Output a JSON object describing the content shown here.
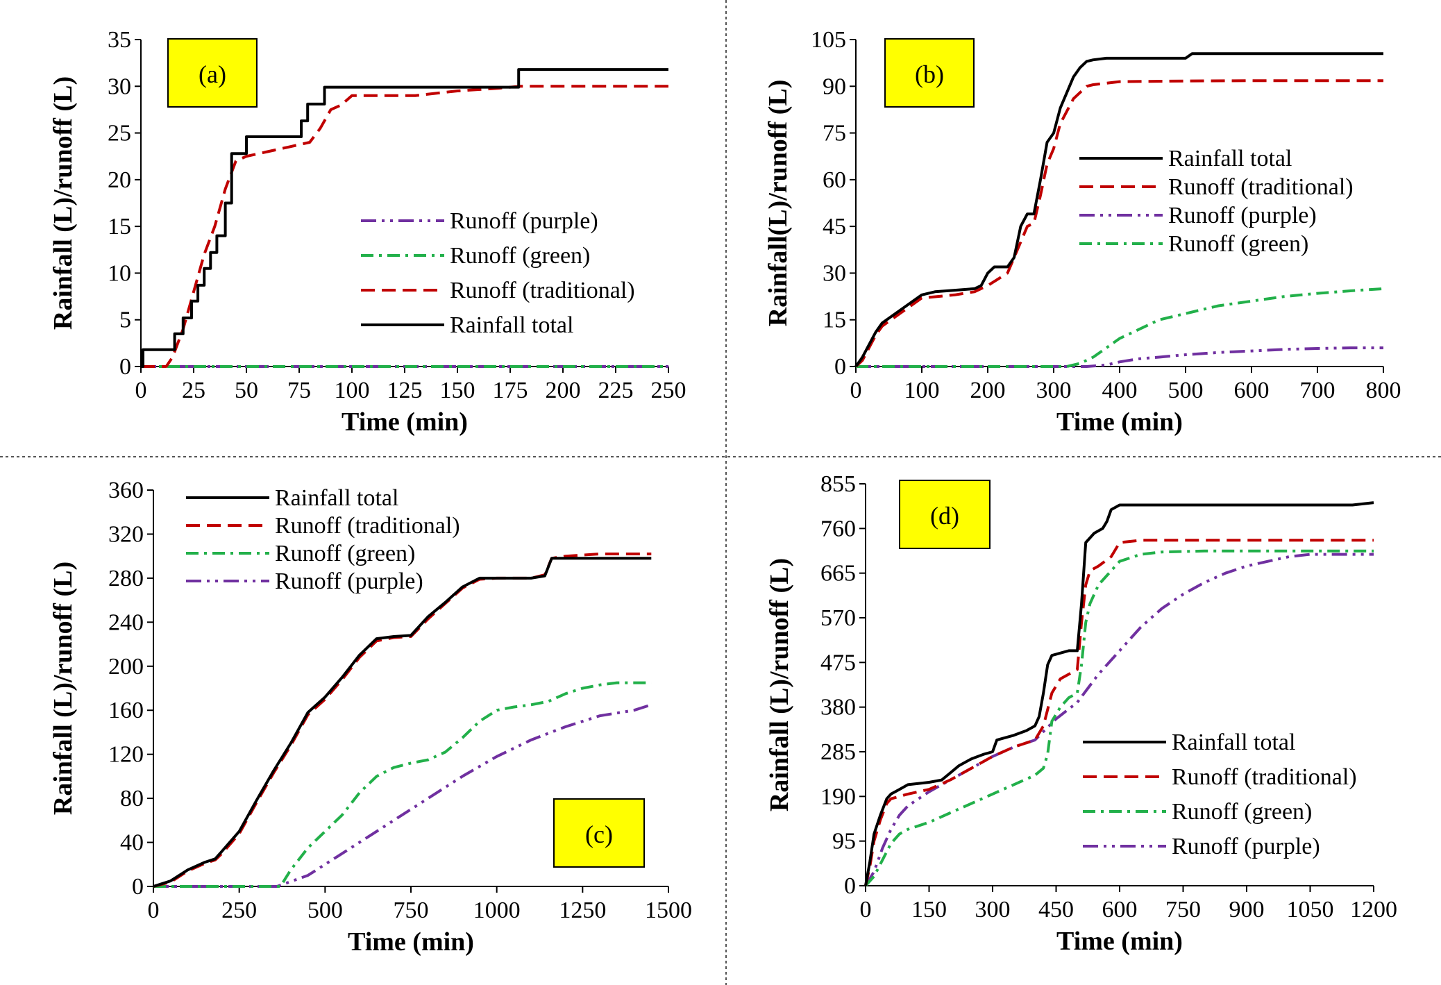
{
  "colors": {
    "rainfall": "#000000",
    "traditional": "#c00000",
    "green": "#22b04a",
    "purple": "#7030a0",
    "label_box_fill": "#ffff00",
    "divider": "#555555"
  },
  "series_styles": {
    "rainfall": "solid",
    "traditional": "dashed",
    "green": "dash-dot",
    "purple": "dash-dot-dot"
  },
  "chart_data": [
    {
      "id": "a",
      "panel_label": "(a)",
      "type": "line",
      "xlabel": "Time (min)",
      "ylabel": "Rainfall (L)/runoff (L)",
      "xlim": [
        0,
        250
      ],
      "ylim": [
        0,
        35
      ],
      "xticks": [
        "0",
        "25",
        "50",
        "75",
        "100",
        "125",
        "150",
        "175",
        "200",
        "225",
        "250"
      ],
      "yticks": [
        "0",
        "5",
        "10",
        "15",
        "20",
        "25",
        "30",
        "35"
      ],
      "legend_position": "center-right",
      "legend_order": [
        "purple",
        "green",
        "traditional",
        "rainfall"
      ],
      "series": [
        {
          "key": "rainfall",
          "name": "Rainfall total",
          "step": true,
          "x": [
            0,
            1,
            12,
            16,
            20,
            24,
            27,
            30,
            33,
            36,
            40,
            43,
            48,
            50,
            75,
            76,
            79,
            84,
            87,
            178,
            179,
            250
          ],
          "y": [
            0,
            1.8,
            1.8,
            3.5,
            5.2,
            7,
            8.7,
            10.5,
            12.2,
            14,
            17.5,
            22.8,
            22.8,
            24.6,
            24.6,
            26.3,
            28.1,
            28.1,
            29.9,
            29.9,
            31.8,
            31.8
          ]
        },
        {
          "key": "traditional",
          "name": "Runoff (traditional)",
          "step": false,
          "x": [
            0,
            12,
            15,
            20,
            25,
            30,
            35,
            40,
            45,
            50,
            60,
            70,
            80,
            85,
            90,
            95,
            100,
            110,
            130,
            150,
            170,
            180,
            250
          ],
          "y": [
            0,
            0,
            1,
            4,
            8,
            12,
            15,
            19,
            22,
            22.5,
            23,
            23.5,
            24,
            25.5,
            27.5,
            28,
            29,
            29,
            29,
            29.5,
            29.8,
            30,
            30
          ]
        },
        {
          "key": "green",
          "name": "Runoff (green)",
          "step": false,
          "x": [
            0,
            250
          ],
          "y": [
            0,
            0
          ]
        },
        {
          "key": "purple",
          "name": "Runoff (purple)",
          "step": false,
          "x": [
            0,
            250
          ],
          "y": [
            0,
            0
          ]
        }
      ]
    },
    {
      "id": "b",
      "panel_label": "(b)",
      "type": "line",
      "xlabel": "Time (min)",
      "ylabel": "Rainfall(L)/runoff (L)",
      "xlim": [
        0,
        800
      ],
      "ylim": [
        0,
        105
      ],
      "xticks": [
        "0",
        "100",
        "200",
        "300",
        "400",
        "500",
        "600",
        "700",
        "800"
      ],
      "yticks": [
        "0",
        "15",
        "30",
        "45",
        "60",
        "75",
        "90",
        "105"
      ],
      "legend_position": "center-right",
      "legend_order": [
        "rainfall",
        "traditional",
        "purple",
        "green"
      ],
      "series": [
        {
          "key": "rainfall",
          "name": "Rainfall total",
          "step": false,
          "x": [
            0,
            10,
            20,
            30,
            40,
            60,
            80,
            100,
            120,
            150,
            180,
            190,
            200,
            210,
            230,
            240,
            250,
            260,
            270,
            280,
            290,
            300,
            310,
            320,
            330,
            340,
            350,
            360,
            380,
            400,
            500,
            510,
            600,
            700,
            800
          ],
          "y": [
            0,
            3,
            7,
            11,
            14,
            17,
            20,
            23,
            24,
            24.5,
            25,
            26,
            30,
            32,
            32,
            35,
            45,
            49,
            49,
            60,
            72,
            75,
            83,
            88,
            93,
            96,
            98,
            98.5,
            99,
            99,
            99,
            100.5,
            100.5,
            100.5,
            100.5
          ]
        },
        {
          "key": "traditional",
          "name": "Runoff (traditional)",
          "step": false,
          "x": [
            0,
            10,
            20,
            30,
            40,
            60,
            80,
            100,
            150,
            180,
            200,
            230,
            250,
            260,
            270,
            280,
            290,
            300,
            310,
            320,
            330,
            340,
            350,
            360,
            380,
            400,
            500,
            600,
            800
          ],
          "y": [
            0,
            2,
            6,
            10,
            13,
            16,
            19,
            22,
            23,
            24,
            26,
            30,
            40,
            45,
            46,
            55,
            65,
            70,
            78,
            82,
            86,
            88,
            90,
            90.5,
            91,
            91.5,
            91.7,
            91.8,
            91.8
          ]
        },
        {
          "key": "green",
          "name": "Runoff (green)",
          "step": false,
          "x": [
            0,
            320,
            340,
            360,
            380,
            400,
            430,
            460,
            500,
            550,
            600,
            650,
            700,
            750,
            800
          ],
          "y": [
            0,
            0,
            1,
            3,
            6,
            9,
            12,
            15,
            17,
            19.5,
            21,
            22.5,
            23.5,
            24.3,
            25
          ]
        },
        {
          "key": "purple",
          "name": "Runoff (purple)",
          "step": false,
          "x": [
            0,
            350,
            380,
            400,
            430,
            460,
            500,
            550,
            600,
            650,
            700,
            750,
            800
          ],
          "y": [
            0,
            0,
            0.5,
            1.5,
            2.5,
            3,
            3.8,
            4.5,
            5,
            5.5,
            5.8,
            6,
            6
          ]
        }
      ]
    },
    {
      "id": "c",
      "panel_label": "(c)",
      "type": "line",
      "xlabel": "Time (min)",
      "ylabel": "Rainfall (L)/runoff (L)",
      "xlim": [
        0,
        1500
      ],
      "ylim": [
        0,
        360
      ],
      "xticks": [
        "0",
        "250",
        "500",
        "750",
        "1000",
        "1250",
        "1500"
      ],
      "yticks": [
        "0",
        "40",
        "80",
        "120",
        "160",
        "200",
        "240",
        "280",
        "320",
        "360"
      ],
      "legend_position": "top-center",
      "legend_order": [
        "rainfall",
        "traditional",
        "green",
        "purple"
      ],
      "series": [
        {
          "key": "rainfall",
          "name": "Rainfall total",
          "step": false,
          "x": [
            0,
            50,
            100,
            150,
            180,
            200,
            250,
            300,
            350,
            400,
            450,
            500,
            550,
            600,
            650,
            700,
            750,
            800,
            850,
            900,
            950,
            1000,
            1050,
            1100,
            1140,
            1160,
            1200,
            1300,
            1450
          ],
          "y": [
            0,
            5,
            15,
            22,
            25,
            32,
            50,
            78,
            105,
            130,
            158,
            172,
            190,
            210,
            225,
            227,
            228,
            245,
            258,
            272,
            280,
            280,
            280,
            280,
            282,
            298,
            298,
            298,
            298
          ]
        },
        {
          "key": "traditional",
          "name": "Runoff (traditional)",
          "step": false,
          "x": [
            0,
            50,
            100,
            150,
            180,
            200,
            250,
            300,
            350,
            400,
            450,
            500,
            550,
            600,
            650,
            700,
            750,
            800,
            850,
            900,
            950,
            1000,
            1050,
            1100,
            1140,
            1160,
            1200,
            1300,
            1450
          ],
          "y": [
            0,
            4,
            14,
            21,
            24,
            30,
            48,
            76,
            103,
            128,
            156,
            170,
            188,
            208,
            223,
            226,
            227,
            243,
            257,
            271,
            279,
            280,
            280,
            280,
            283,
            298,
            300,
            302,
            302
          ]
        },
        {
          "key": "green",
          "name": "Runoff (green)",
          "step": false,
          "x": [
            0,
            370,
            400,
            450,
            500,
            550,
            600,
            650,
            700,
            750,
            800,
            850,
            900,
            950,
            1000,
            1050,
            1100,
            1150,
            1200,
            1250,
            1300,
            1350,
            1450
          ],
          "y": [
            0,
            0,
            15,
            35,
            50,
            65,
            85,
            100,
            108,
            112,
            115,
            122,
            135,
            150,
            160,
            163,
            165,
            168,
            175,
            180,
            183,
            185,
            185
          ]
        },
        {
          "key": "purple",
          "name": "Runoff (purple)",
          "step": false,
          "x": [
            0,
            360,
            450,
            500,
            600,
            700,
            800,
            900,
            1000,
            1100,
            1200,
            1300,
            1400,
            1450
          ],
          "y": [
            0,
            0,
            10,
            20,
            40,
            60,
            80,
            100,
            118,
            133,
            145,
            155,
            160,
            165
          ]
        }
      ]
    },
    {
      "id": "d",
      "panel_label": "(d)",
      "type": "line",
      "xlabel": "Time (min)",
      "ylabel": "Rainfall (L)/runoff (L)",
      "xlim": [
        0,
        1200
      ],
      "ylim": [
        0,
        855
      ],
      "xticks": [
        "0",
        "150",
        "300",
        "450",
        "600",
        "750",
        "900",
        "1050",
        "1200"
      ],
      "yticks": [
        "0",
        "95",
        "190",
        "285",
        "380",
        "475",
        "570",
        "665",
        "760",
        "855"
      ],
      "legend_position": "bottom-right",
      "legend_order": [
        "rainfall",
        "traditional",
        "green",
        "purple"
      ],
      "series": [
        {
          "key": "rainfall",
          "name": "Rainfall total",
          "step": false,
          "x": [
            0,
            10,
            20,
            35,
            50,
            60,
            80,
            100,
            150,
            180,
            200,
            220,
            250,
            280,
            300,
            310,
            330,
            350,
            380,
            400,
            410,
            420,
            430,
            440,
            460,
            480,
            500,
            510,
            520,
            540,
            560,
            570,
            580,
            600,
            650,
            700,
            800,
            1000,
            1150,
            1200
          ],
          "y": [
            0,
            50,
            110,
            150,
            185,
            195,
            205,
            215,
            220,
            225,
            240,
            255,
            270,
            280,
            285,
            310,
            315,
            320,
            330,
            340,
            360,
            410,
            470,
            490,
            495,
            500,
            500,
            600,
            730,
            750,
            760,
            775,
            800,
            810,
            810,
            810,
            810,
            810,
            810,
            815
          ]
        },
        {
          "key": "traditional",
          "name": "Runoff (traditional)",
          "step": false,
          "x": [
            0,
            10,
            20,
            35,
            50,
            60,
            80,
            100,
            150,
            200,
            250,
            300,
            350,
            400,
            420,
            440,
            460,
            480,
            500,
            510,
            520,
            530,
            550,
            580,
            600,
            650,
            800,
            1000,
            1200
          ],
          "y": [
            0,
            40,
            95,
            140,
            175,
            185,
            190,
            195,
            205,
            225,
            250,
            275,
            295,
            310,
            340,
            410,
            440,
            450,
            460,
            560,
            640,
            670,
            680,
            700,
            730,
            735,
            735,
            735,
            735
          ]
        },
        {
          "key": "green",
          "name": "Runoff (green)",
          "step": false,
          "x": [
            0,
            20,
            40,
            60,
            80,
            100,
            150,
            200,
            250,
            300,
            350,
            400,
            420,
            430,
            440,
            460,
            480,
            500,
            510,
            520,
            530,
            550,
            580,
            600,
            650,
            700,
            800,
            1000,
            1200
          ],
          "y": [
            0,
            20,
            55,
            90,
            110,
            120,
            135,
            155,
            175,
            195,
            215,
            235,
            250,
            280,
            350,
            380,
            400,
            410,
            470,
            560,
            600,
            640,
            670,
            690,
            705,
            710,
            712,
            712,
            712
          ]
        },
        {
          "key": "purple",
          "name": "Runoff (purple)",
          "step": false,
          "x": [
            0,
            20,
            40,
            60,
            80,
            100,
            150,
            200,
            250,
            300,
            350,
            400,
            450,
            500,
            550,
            600,
            650,
            700,
            750,
            800,
            850,
            900,
            950,
            1000,
            1050,
            1200
          ],
          "y": [
            0,
            30,
            80,
            120,
            150,
            170,
            200,
            225,
            250,
            275,
            295,
            310,
            355,
            390,
            450,
            500,
            550,
            590,
            620,
            645,
            665,
            680,
            690,
            700,
            705,
            705
          ]
        }
      ]
    }
  ]
}
